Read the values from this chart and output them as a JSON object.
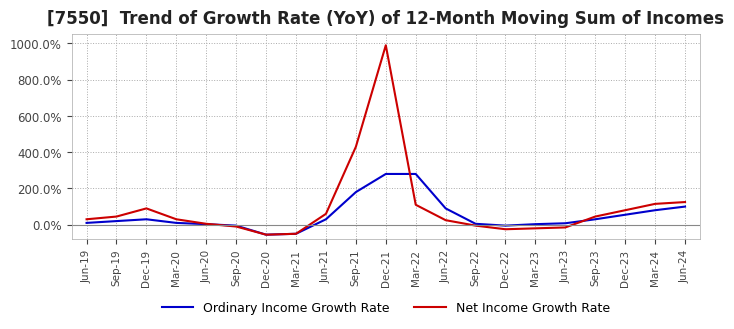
{
  "title": "[7550]  Trend of Growth Rate (YoY) of 12-Month Moving Sum of Incomes",
  "title_fontsize": 12,
  "ylim": [
    -80,
    1050
  ],
  "background_color": "#ffffff",
  "grid_color": "#aaaaaa",
  "legend_entries": [
    "Ordinary Income Growth Rate",
    "Net Income Growth Rate"
  ],
  "legend_colors": [
    "#0000cc",
    "#cc0000"
  ],
  "x_labels": [
    "Jun-19",
    "Sep-19",
    "Dec-19",
    "Mar-20",
    "Jun-20",
    "Sep-20",
    "Dec-20",
    "Mar-21",
    "Jun-21",
    "Sep-21",
    "Dec-21",
    "Mar-22",
    "Jun-22",
    "Sep-22",
    "Dec-22",
    "Mar-23",
    "Jun-23",
    "Sep-23",
    "Dec-23",
    "Mar-24",
    "Jun-24"
  ],
  "ordinary_income": [
    10,
    20,
    30,
    10,
    3,
    -5,
    -55,
    -50,
    30,
    180,
    280,
    280,
    90,
    5,
    -5,
    3,
    8,
    30,
    55,
    80,
    100
  ],
  "net_income": [
    30,
    45,
    90,
    30,
    5,
    -10,
    -55,
    -50,
    60,
    430,
    990,
    110,
    25,
    -5,
    -25,
    -20,
    -15,
    45,
    80,
    115,
    125
  ]
}
